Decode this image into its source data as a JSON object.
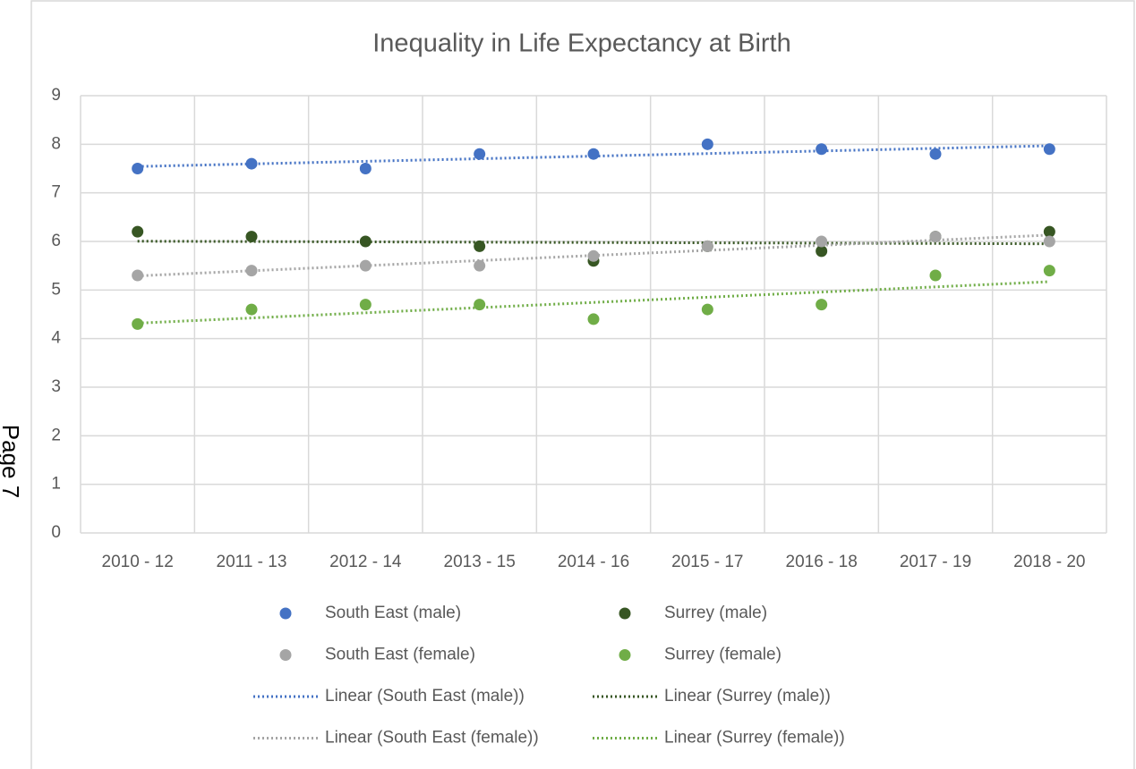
{
  "page_label": "Page 7",
  "chart_data": {
    "type": "scatter",
    "title": "Inequality in Life Expectancy at Birth",
    "categories": [
      "2010 - 12",
      "2011 - 13",
      "2012 - 14",
      "2013 - 15",
      "2014 - 16",
      "2015 - 17",
      "2016 - 18",
      "2017 - 19",
      "2018 - 20"
    ],
    "series": [
      {
        "name": "South East (male)",
        "color": "#4472c4",
        "trendline": "Linear (South East (male))",
        "values": [
          7.5,
          7.6,
          7.5,
          7.8,
          7.8,
          8.0,
          7.9,
          7.8,
          7.9
        ]
      },
      {
        "name": "Surrey (male)",
        "color": "#375623",
        "trendline": "Linear (Surrey (male))",
        "values": [
          6.2,
          6.1,
          6.0,
          5.9,
          5.6,
          5.9,
          5.8,
          6.1,
          6.2
        ]
      },
      {
        "name": "South East (female)",
        "color": "#a5a5a5",
        "trendline": "Linear (South East (female))",
        "values": [
          5.3,
          5.4,
          5.5,
          5.5,
          5.7,
          5.9,
          6.0,
          6.1,
          6.0
        ]
      },
      {
        "name": "Surrey (female)",
        "color": "#70ad47",
        "trendline": "Linear (Surrey (female))",
        "values": [
          4.3,
          4.6,
          4.7,
          4.7,
          4.4,
          4.6,
          4.7,
          5.3,
          5.4
        ]
      }
    ],
    "ylim": [
      0,
      9
    ],
    "yticks": [
      0,
      1,
      2,
      3,
      4,
      5,
      6,
      7,
      8,
      9
    ],
    "grid": true
  }
}
